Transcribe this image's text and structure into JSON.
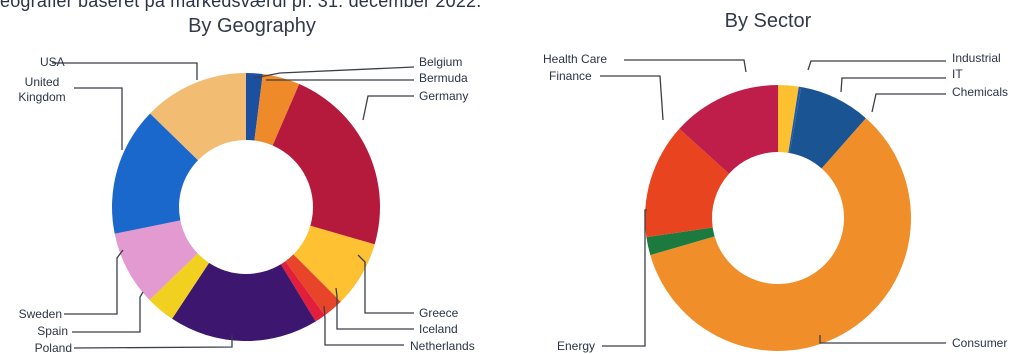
{
  "caption": "eografier baseret på markedsværdi pr. 31. december 2022.",
  "chart_data": [
    {
      "type": "pie",
      "title": "By Geography",
      "donut": true,
      "slices": [
        {
          "label": "Belgium",
          "value": 2,
          "color": "#1c4fa0"
        },
        {
          "label": "Bermuda",
          "value": 4.5,
          "color": "#ef8a2a"
        },
        {
          "label": "Germany",
          "value": 23,
          "color": "#b51a3c"
        },
        {
          "label": "Greece",
          "value": 8,
          "color": "#fdc131"
        },
        {
          "label": "Iceland",
          "value": 2.5,
          "color": "#e8442a"
        },
        {
          "label": "Netherlands",
          "value": 1.3,
          "color": "#e11f3c"
        },
        {
          "label": "Poland",
          "value": 18,
          "color": "#3d1670"
        },
        {
          "label": "Spain",
          "value": 3.5,
          "color": "#f2d020"
        },
        {
          "label": "Sweden",
          "value": 9,
          "color": "#e39ad1"
        },
        {
          "label": "United Kingdom",
          "value": 15.5,
          "color": "#1a68cc"
        },
        {
          "label": "USA",
          "value": 12.7,
          "color": "#f3bc73"
        }
      ]
    },
    {
      "type": "pie",
      "title": "By Sector",
      "donut": true,
      "slices": [
        {
          "label": "Industrial",
          "value": 2.5,
          "color": "#fcc030"
        },
        {
          "label": "IT",
          "value": 0.3,
          "color": "#1f5aa8"
        },
        {
          "label": "Chemicals",
          "value": 8.7,
          "color": "#1b5492"
        },
        {
          "label": "Consumer",
          "value": 59,
          "color": "#f08f2a"
        },
        {
          "label": "Energy",
          "value": 2.2,
          "color": "#1d7a3e"
        },
        {
          "label": "Finance",
          "value": 14,
          "color": "#e8441f"
        },
        {
          "label": "Health Care",
          "value": 13.3,
          "color": "#bf1d4a"
        }
      ]
    }
  ]
}
